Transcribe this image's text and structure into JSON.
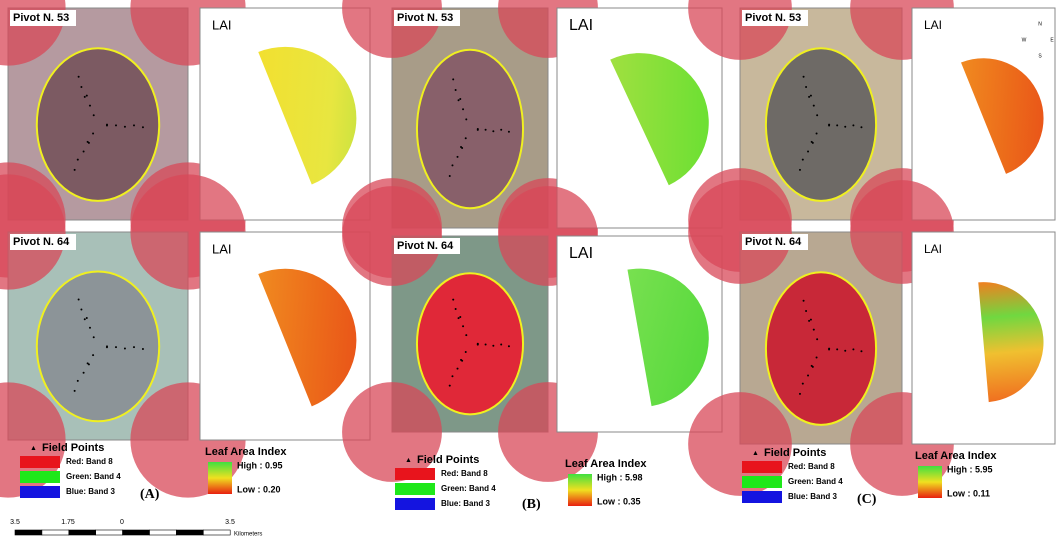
{
  "panels": [
    {
      "label": "(A)",
      "pivots": [
        {
          "name": "Pivot N. 53",
          "map_title": "LAI"
        },
        {
          "name": "Pivot N. 64",
          "map_title": "LAI"
        }
      ],
      "legend": {
        "points": "Field Points",
        "bands": [
          "Red:  Band 8",
          "Green: Band 4",
          "Blue:  Band 3"
        ],
        "index_title": "Leaf Area Index",
        "high": "High : 0.95",
        "low": "Low : 0.20"
      }
    },
    {
      "label": "(B)",
      "pivots": [
        {
          "name": "Pivot N. 53",
          "map_title": "LAI"
        },
        {
          "name": "Pivot N. 64",
          "map_title": "LAI"
        }
      ],
      "legend": {
        "points": "Field Points",
        "bands": [
          "Red:  Band 8",
          "Green: Band 4",
          "Blue:  Band 3"
        ],
        "index_title": "Leaf Area Index",
        "high": "High : 5.98",
        "low": "Low : 0.35"
      }
    },
    {
      "label": "(C)",
      "pivots": [
        {
          "name": "Pivot N. 53",
          "map_title": "LAI"
        },
        {
          "name": "Pivot N. 64",
          "map_title": "LAI"
        }
      ],
      "legend": {
        "points": "Field Points",
        "bands": [
          "Red:  Band 8",
          "Green: Band 4",
          "Blue:  Band 3"
        ],
        "index_title": "Leaf Area Index",
        "high": "High : 5.95",
        "low": "Low : 0.11"
      }
    }
  ],
  "scale_bar": {
    "labels": [
      "3.5",
      "1.75",
      "0",
      "3.5"
    ],
    "unit": "Kilometers"
  },
  "compass": [
    "N",
    "E",
    "S",
    "W"
  ]
}
